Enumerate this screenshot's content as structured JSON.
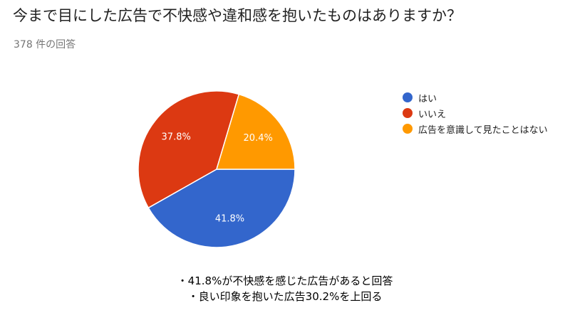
{
  "header": {
    "title": "今まで目にした広告で不快感や違和感を抱いたものはありますか？",
    "response_count": "378 件の回答"
  },
  "chart_data": {
    "type": "pie",
    "title": "今まで目にした広告で不快感や違和感を抱いたものはありますか？",
    "categories": [
      "はい",
      "いいえ",
      "広告を意識して見たことはない"
    ],
    "values": [
      41.8,
      37.8,
      20.4
    ],
    "data_labels": [
      "41.8%",
      "37.8%",
      "20.4%"
    ],
    "colors": [
      "#3366cc",
      "#dc3912",
      "#ff9900"
    ],
    "legend_position": "right"
  },
  "notes": {
    "line1": "・41.8%が不快感を感じた広告があると回答",
    "line2": "・良い印象を抱いた広告30.2%を上回る"
  }
}
